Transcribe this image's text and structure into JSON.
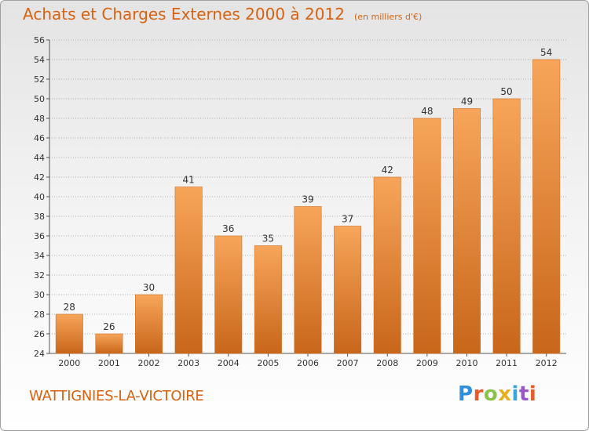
{
  "title": "Achats et Charges Externes 2000 à 2012",
  "subtitle": "(en milliers d'€)",
  "location": "WATTIGNIES-LA-VICTOIRE",
  "brand": "Proxiti",
  "chart_data": {
    "type": "bar",
    "categories": [
      "2000",
      "2001",
      "2002",
      "2003",
      "2004",
      "2005",
      "2006",
      "2007",
      "2008",
      "2009",
      "2010",
      "2011",
      "2012"
    ],
    "values": [
      28,
      26,
      30,
      41,
      36,
      35,
      39,
      37,
      42,
      48,
      49,
      50,
      54
    ],
    "ylim": [
      24,
      56
    ],
    "ytick_step": 2,
    "grid": "horizontal-dotted",
    "bar_color_top": "#f7a55a",
    "bar_color_bottom": "#c8661a",
    "text_color": "#d8620f"
  }
}
